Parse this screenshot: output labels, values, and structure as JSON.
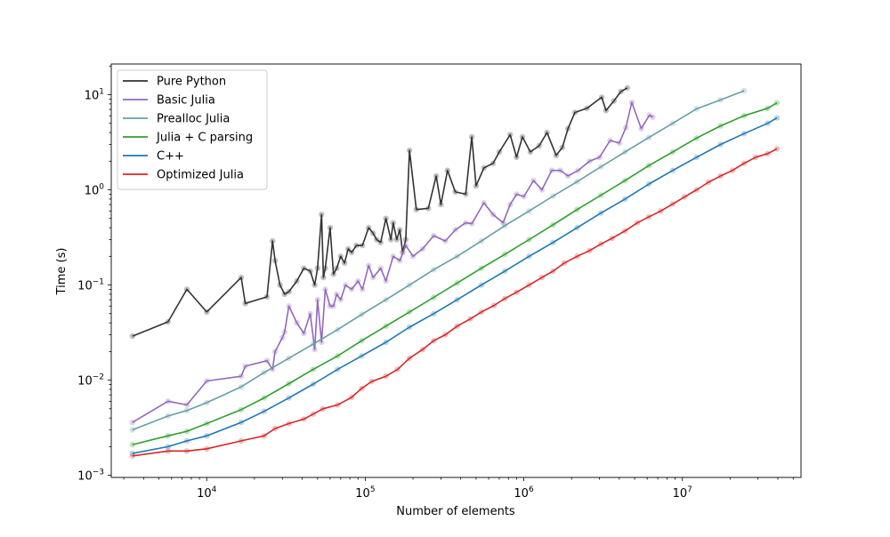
{
  "chart_data": {
    "type": "line",
    "title": "",
    "xlabel": "Number of elements",
    "ylabel": "Time (s)",
    "xscale": "log",
    "yscale": "log",
    "xlim": [
      2500,
      56000000
    ],
    "ylim": [
      0.00095,
      21
    ],
    "grid": false,
    "legend_placement": "top-left",
    "x_ticks": [
      {
        "value": 10000,
        "base": "10",
        "exp": "4"
      },
      {
        "value": 100000,
        "base": "10",
        "exp": "5"
      },
      {
        "value": 1000000,
        "base": "10",
        "exp": "6"
      },
      {
        "value": 10000000,
        "base": "10",
        "exp": "7"
      }
    ],
    "y_ticks": [
      {
        "value": 0.001,
        "base": "10",
        "exp": "−3"
      },
      {
        "value": 0.01,
        "base": "10",
        "exp": "−2"
      },
      {
        "value": 0.1,
        "base": "10",
        "exp": "−1"
      },
      {
        "value": 1,
        "base": "10",
        "exp": "0"
      },
      {
        "value": 10,
        "base": "10",
        "exp": "1"
      }
    ],
    "series": [
      {
        "name": "Pure Python",
        "color": "#333333",
        "x": [
          3400,
          5700,
          7500,
          10000,
          16500,
          17500,
          24000,
          26000,
          27000,
          29000,
          31000,
          33000,
          37000,
          41000,
          45000,
          48000,
          50000,
          53000,
          54500,
          56000,
          60000,
          63000,
          66000,
          70000,
          74000,
          78000,
          82000,
          88000,
          96000,
          105000,
          112000,
          118000,
          125000,
          135000,
          145000,
          150000,
          158000,
          165000,
          172000,
          180000,
          190000,
          210000,
          250000,
          280000,
          300000,
          330000,
          370000,
          430000,
          470000,
          500000,
          560000,
          640000,
          700000,
          820000,
          900000,
          980000,
          1100000,
          1250000,
          1400000,
          1600000,
          1750000,
          1900000,
          2100000,
          2500000,
          3100000,
          3300000,
          3700000,
          4100000,
          4500000
        ],
        "y": [
          0.029,
          0.041,
          0.09,
          0.052,
          0.12,
          0.064,
          0.075,
          0.29,
          0.18,
          0.1,
          0.08,
          0.085,
          0.11,
          0.15,
          0.14,
          0.1,
          0.15,
          0.55,
          0.12,
          0.15,
          0.4,
          0.13,
          0.15,
          0.2,
          0.17,
          0.24,
          0.22,
          0.26,
          0.26,
          0.4,
          0.35,
          0.3,
          0.28,
          0.5,
          0.3,
          0.45,
          0.3,
          0.38,
          0.22,
          0.3,
          2.6,
          0.62,
          0.64,
          1.4,
          0.7,
          1.6,
          0.95,
          0.9,
          3.6,
          1.1,
          1.7,
          1.9,
          2.5,
          3.8,
          2.2,
          3.6,
          2.5,
          2.9,
          4.0,
          2.3,
          2.8,
          4.4,
          6.5,
          7.2,
          9.4,
          6.8,
          8.6,
          10.8,
          11.8
        ]
      },
      {
        "name": "Basic Julia",
        "color": "#9467bd",
        "x": [
          3400,
          5700,
          7500,
          10000,
          16500,
          17500,
          24000,
          26000,
          27000,
          30000,
          31000,
          33000,
          37000,
          41000,
          45000,
          48000,
          50000,
          53000,
          56000,
          60000,
          63000,
          66000,
          70000,
          75000,
          82000,
          90000,
          96000,
          105000,
          112000,
          125000,
          135000,
          150000,
          165000,
          180000,
          200000,
          230000,
          270000,
          320000,
          370000,
          430000,
          470000,
          560000,
          640000,
          740000,
          820000,
          900000,
          1000000,
          1150000,
          1300000,
          1500000,
          1700000,
          1900000,
          2200000,
          2600000,
          3000000,
          3500000,
          4000000,
          4400000,
          4800000,
          5500000,
          6200000,
          6500000
        ],
        "y": [
          0.0036,
          0.006,
          0.0055,
          0.0098,
          0.011,
          0.014,
          0.016,
          0.013,
          0.02,
          0.028,
          0.032,
          0.06,
          0.04,
          0.031,
          0.05,
          0.021,
          0.07,
          0.025,
          0.09,
          0.06,
          0.06,
          0.08,
          0.07,
          0.1,
          0.09,
          0.11,
          0.09,
          0.16,
          0.12,
          0.15,
          0.11,
          0.2,
          0.18,
          0.26,
          0.2,
          0.24,
          0.33,
          0.29,
          0.38,
          0.45,
          0.44,
          0.73,
          0.55,
          0.45,
          0.7,
          0.9,
          0.85,
          1.25,
          1.0,
          1.6,
          1.6,
          1.4,
          1.6,
          2.0,
          2.2,
          3.3,
          3.1,
          4.5,
          8.3,
          4.4,
          6.1,
          5.8
        ]
      },
      {
        "name": "Prealloc Julia",
        "color": "#659ea8",
        "x": [
          3400,
          5700,
          7500,
          10000,
          16500,
          23000,
          33000,
          47000,
          67000,
          95000,
          135000,
          190000,
          270000,
          380000,
          540000,
          760000,
          1080000,
          1530000,
          2170000,
          3070000,
          4350000,
          6150000,
          8700000,
          12300000,
          17400000,
          24500000
        ],
        "y": [
          0.003,
          0.0042,
          0.0048,
          0.0058,
          0.0085,
          0.012,
          0.017,
          0.024,
          0.034,
          0.049,
          0.07,
          0.1,
          0.145,
          0.2,
          0.29,
          0.42,
          0.6,
          0.86,
          1.22,
          1.75,
          2.5,
          3.55,
          5.0,
          7.1,
          8.8,
          11.0
        ]
      },
      {
        "name": "Julia + C parsing",
        "color": "#2ca02c",
        "x": [
          3400,
          5700,
          7500,
          10000,
          16500,
          23000,
          33000,
          47000,
          67000,
          95000,
          135000,
          190000,
          270000,
          380000,
          540000,
          760000,
          1080000,
          1530000,
          2170000,
          3070000,
          4350000,
          6150000,
          8700000,
          12300000,
          17400000,
          24500000,
          34500000,
          39500000
        ],
        "y": [
          0.0021,
          0.0026,
          0.0029,
          0.0035,
          0.0049,
          0.0065,
          0.0092,
          0.013,
          0.018,
          0.026,
          0.037,
          0.052,
          0.074,
          0.105,
          0.15,
          0.21,
          0.3,
          0.43,
          0.62,
          0.88,
          1.25,
          1.8,
          2.5,
          3.5,
          4.7,
          6.0,
          7.2,
          8.2
        ]
      },
      {
        "name": "C++",
        "color": "#1f77b4",
        "x": [
          3400,
          5700,
          7500,
          10000,
          16500,
          23000,
          33000,
          47000,
          67000,
          95000,
          135000,
          190000,
          270000,
          380000,
          540000,
          760000,
          1080000,
          1530000,
          2170000,
          3070000,
          4350000,
          6150000,
          8700000,
          12300000,
          17400000,
          24500000,
          34500000,
          39500000
        ],
        "y": [
          0.0017,
          0.002,
          0.0023,
          0.0026,
          0.0036,
          0.0047,
          0.0065,
          0.0091,
          0.013,
          0.018,
          0.025,
          0.036,
          0.05,
          0.07,
          0.1,
          0.14,
          0.2,
          0.28,
          0.4,
          0.57,
          0.8,
          1.15,
          1.6,
          2.2,
          3.0,
          3.9,
          5.0,
          5.7
        ]
      },
      {
        "name": "Optimized Julia",
        "color": "#d62728",
        "x": [
          3400,
          5700,
          7500,
          10000,
          16500,
          23000,
          27000,
          33000,
          41000,
          47000,
          54000,
          67000,
          82000,
          95000,
          110000,
          135000,
          160000,
          190000,
          230000,
          270000,
          320000,
          380000,
          460000,
          540000,
          650000,
          760000,
          900000,
          1080000,
          1300000,
          1530000,
          1800000,
          2170000,
          2600000,
          3070000,
          3600000,
          4350000,
          5200000,
          6150000,
          7300000,
          8700000,
          10300000,
          12300000,
          14600000,
          17400000,
          20700000,
          24500000,
          29000000,
          34500000,
          39500000
        ],
        "y": [
          0.0016,
          0.0018,
          0.0018,
          0.0019,
          0.0023,
          0.0026,
          0.0031,
          0.0035,
          0.0039,
          0.0044,
          0.005,
          0.0055,
          0.0066,
          0.0082,
          0.0097,
          0.011,
          0.013,
          0.017,
          0.021,
          0.026,
          0.03,
          0.037,
          0.044,
          0.052,
          0.061,
          0.072,
          0.084,
          0.1,
          0.12,
          0.14,
          0.17,
          0.2,
          0.23,
          0.27,
          0.31,
          0.37,
          0.45,
          0.52,
          0.6,
          0.71,
          0.84,
          1.0,
          1.2,
          1.4,
          1.6,
          1.9,
          2.2,
          2.4,
          2.7
        ]
      }
    ]
  }
}
